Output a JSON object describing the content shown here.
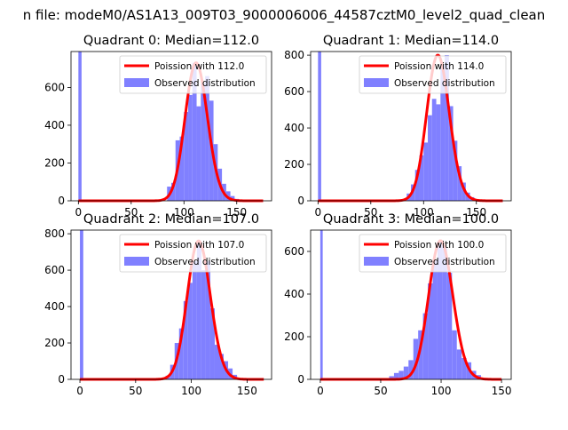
{
  "figure": {
    "suptitle": "n file: modeM0/AS1A13_009T03_9000006006_44587cztM0_level2_quad_clean"
  },
  "chart_data": [
    {
      "type": "bar",
      "title": "Quadrant 0: Median=112.0",
      "xlabel": "",
      "ylabel": "",
      "xlim": [
        -7,
        183
      ],
      "ylim": [
        0,
        790
      ],
      "xticks": [
        0,
        50,
        100,
        150
      ],
      "yticks": [
        0,
        200,
        400,
        600
      ],
      "legend_position": "upper right",
      "series": [
        {
          "name": "Poission with 112.0",
          "kind": "line",
          "color": "#ff0000",
          "median": 112.0,
          "x_range": [
            0,
            175
          ]
        },
        {
          "name": "Observed distribution",
          "kind": "hist",
          "color": "#8080ff",
          "bins": [
            [
              0,
              3,
              790
            ],
            [
              84,
              88,
              75
            ],
            [
              88,
              92,
              95
            ],
            [
              92,
              96,
              320
            ],
            [
              96,
              100,
              340
            ],
            [
              100,
              104,
              470
            ],
            [
              104,
              108,
              560
            ],
            [
              108,
              112,
              730
            ],
            [
              112,
              116,
              500
            ],
            [
              116,
              120,
              620
            ],
            [
              120,
              124,
              660
            ],
            [
              124,
              128,
              530
            ],
            [
              128,
              132,
              300
            ],
            [
              132,
              136,
              170
            ],
            [
              136,
              140,
              90
            ],
            [
              140,
              144,
              50
            ],
            [
              144,
              148,
              25
            ],
            [
              148,
              152,
              10
            ]
          ]
        }
      ]
    },
    {
      "type": "bar",
      "title": "Quadrant 1: Median=114.0",
      "xlabel": "",
      "ylabel": "",
      "xlim": [
        -7,
        183
      ],
      "ylim": [
        0,
        820
      ],
      "xticks": [
        0,
        50,
        100,
        150
      ],
      "yticks": [
        0,
        200,
        400,
        600,
        800
      ],
      "legend_position": "upper right",
      "series": [
        {
          "name": "Poission with 114.0",
          "kind": "line",
          "color": "#ff0000",
          "median": 114.0,
          "x_range": [
            0,
            175
          ]
        },
        {
          "name": "Observed distribution",
          "kind": "hist",
          "color": "#8080ff",
          "bins": [
            [
              0,
              3,
              820
            ],
            [
              84,
              88,
              40
            ],
            [
              88,
              92,
              90
            ],
            [
              92,
              96,
              170
            ],
            [
              96,
              100,
              250
            ],
            [
              100,
              104,
              320
            ],
            [
              104,
              108,
              470
            ],
            [
              108,
              112,
              560
            ],
            [
              112,
              116,
              530
            ],
            [
              116,
              120,
              750
            ],
            [
              120,
              124,
              800
            ],
            [
              124,
              128,
              520
            ],
            [
              128,
              132,
              330
            ],
            [
              132,
              136,
              190
            ],
            [
              136,
              140,
              100
            ],
            [
              140,
              144,
              45
            ],
            [
              144,
              148,
              20
            ]
          ]
        }
      ]
    },
    {
      "type": "bar",
      "title": "Quadrant 2: Median=107.0",
      "xlabel": "",
      "ylabel": "",
      "xlim": [
        -8,
        172
      ],
      "ylim": [
        0,
        820
      ],
      "xticks": [
        0,
        50,
        100,
        150
      ],
      "yticks": [
        0,
        200,
        400,
        600,
        800
      ],
      "legend_position": "upper right",
      "series": [
        {
          "name": "Poission with 107.0",
          "kind": "line",
          "color": "#ff0000",
          "median": 107.0,
          "x_range": [
            0,
            165
          ]
        },
        {
          "name": "Observed distribution",
          "kind": "hist",
          "color": "#8080ff",
          "bins": [
            [
              0,
              3,
              820
            ],
            [
              77,
              81,
              20
            ],
            [
              81,
              85,
              80
            ],
            [
              85,
              89,
              200
            ],
            [
              89,
              93,
              280
            ],
            [
              93,
              97,
              430
            ],
            [
              97,
              101,
              530
            ],
            [
              101,
              105,
              650
            ],
            [
              105,
              109,
              760
            ],
            [
              109,
              113,
              600
            ],
            [
              113,
              117,
              650
            ],
            [
              117,
              121,
              390
            ],
            [
              121,
              125,
              190
            ],
            [
              125,
              129,
              140
            ],
            [
              129,
              133,
              100
            ],
            [
              133,
              137,
              60
            ],
            [
              137,
              141,
              25
            ]
          ]
        }
      ]
    },
    {
      "type": "bar",
      "title": "Quadrant 3: Median=100.0",
      "xlabel": "",
      "ylabel": "",
      "xlim": [
        -8,
        158
      ],
      "ylim": [
        0,
        700
      ],
      "xticks": [
        0,
        50,
        100,
        150
      ],
      "yticks": [
        0,
        200,
        400,
        600
      ],
      "legend_position": "upper right",
      "series": [
        {
          "name": "Poission with 100.0",
          "kind": "line",
          "color": "#ff0000",
          "median": 100.0,
          "x_range": [
            0,
            150
          ]
        },
        {
          "name": "Observed distribution",
          "kind": "hist",
          "color": "#8080ff",
          "bins": [
            [
              0,
              2,
              700
            ],
            [
              57,
              61,
              15
            ],
            [
              61,
              65,
              30
            ],
            [
              65,
              69,
              40
            ],
            [
              69,
              73,
              60
            ],
            [
              73,
              77,
              90
            ],
            [
              77,
              81,
              190
            ],
            [
              81,
              85,
              230
            ],
            [
              85,
              89,
              310
            ],
            [
              89,
              93,
              450
            ],
            [
              93,
              97,
              560
            ],
            [
              97,
              101,
              650
            ],
            [
              101,
              105,
              620
            ],
            [
              105,
              109,
              500
            ],
            [
              109,
              113,
              230
            ],
            [
              113,
              117,
              140
            ],
            [
              117,
              121,
              100
            ],
            [
              121,
              125,
              80
            ],
            [
              125,
              129,
              40
            ],
            [
              129,
              133,
              20
            ]
          ]
        }
      ]
    }
  ]
}
